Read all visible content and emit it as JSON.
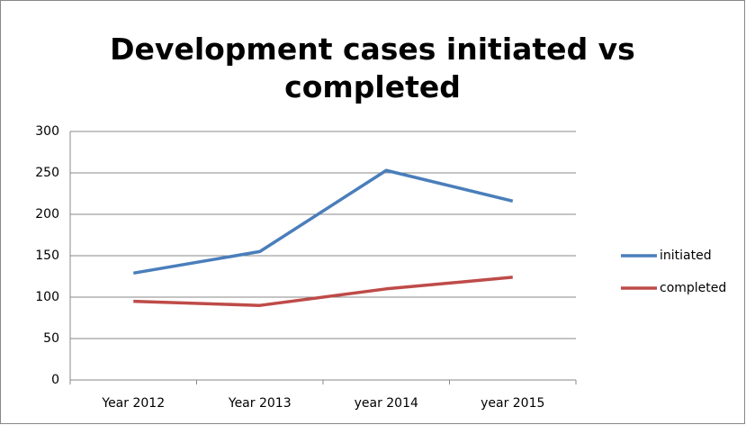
{
  "chart_data": {
    "type": "line",
    "title": "Development cases initiated vs completed",
    "categories": [
      "Year 2012",
      "Year 2013",
      "year 2014",
      "year 2015"
    ],
    "series": [
      {
        "name": "initiated",
        "color": "#4a7ebb",
        "values": [
          129,
          155,
          253,
          216
        ]
      },
      {
        "name": "completed",
        "color": "#be4b48",
        "values": [
          95,
          90,
          110,
          124
        ]
      }
    ],
    "ylim": [
      0,
      300
    ],
    "yticks": [
      0,
      50,
      100,
      150,
      200,
      250,
      300
    ],
    "grid": true,
    "legend": "right"
  }
}
